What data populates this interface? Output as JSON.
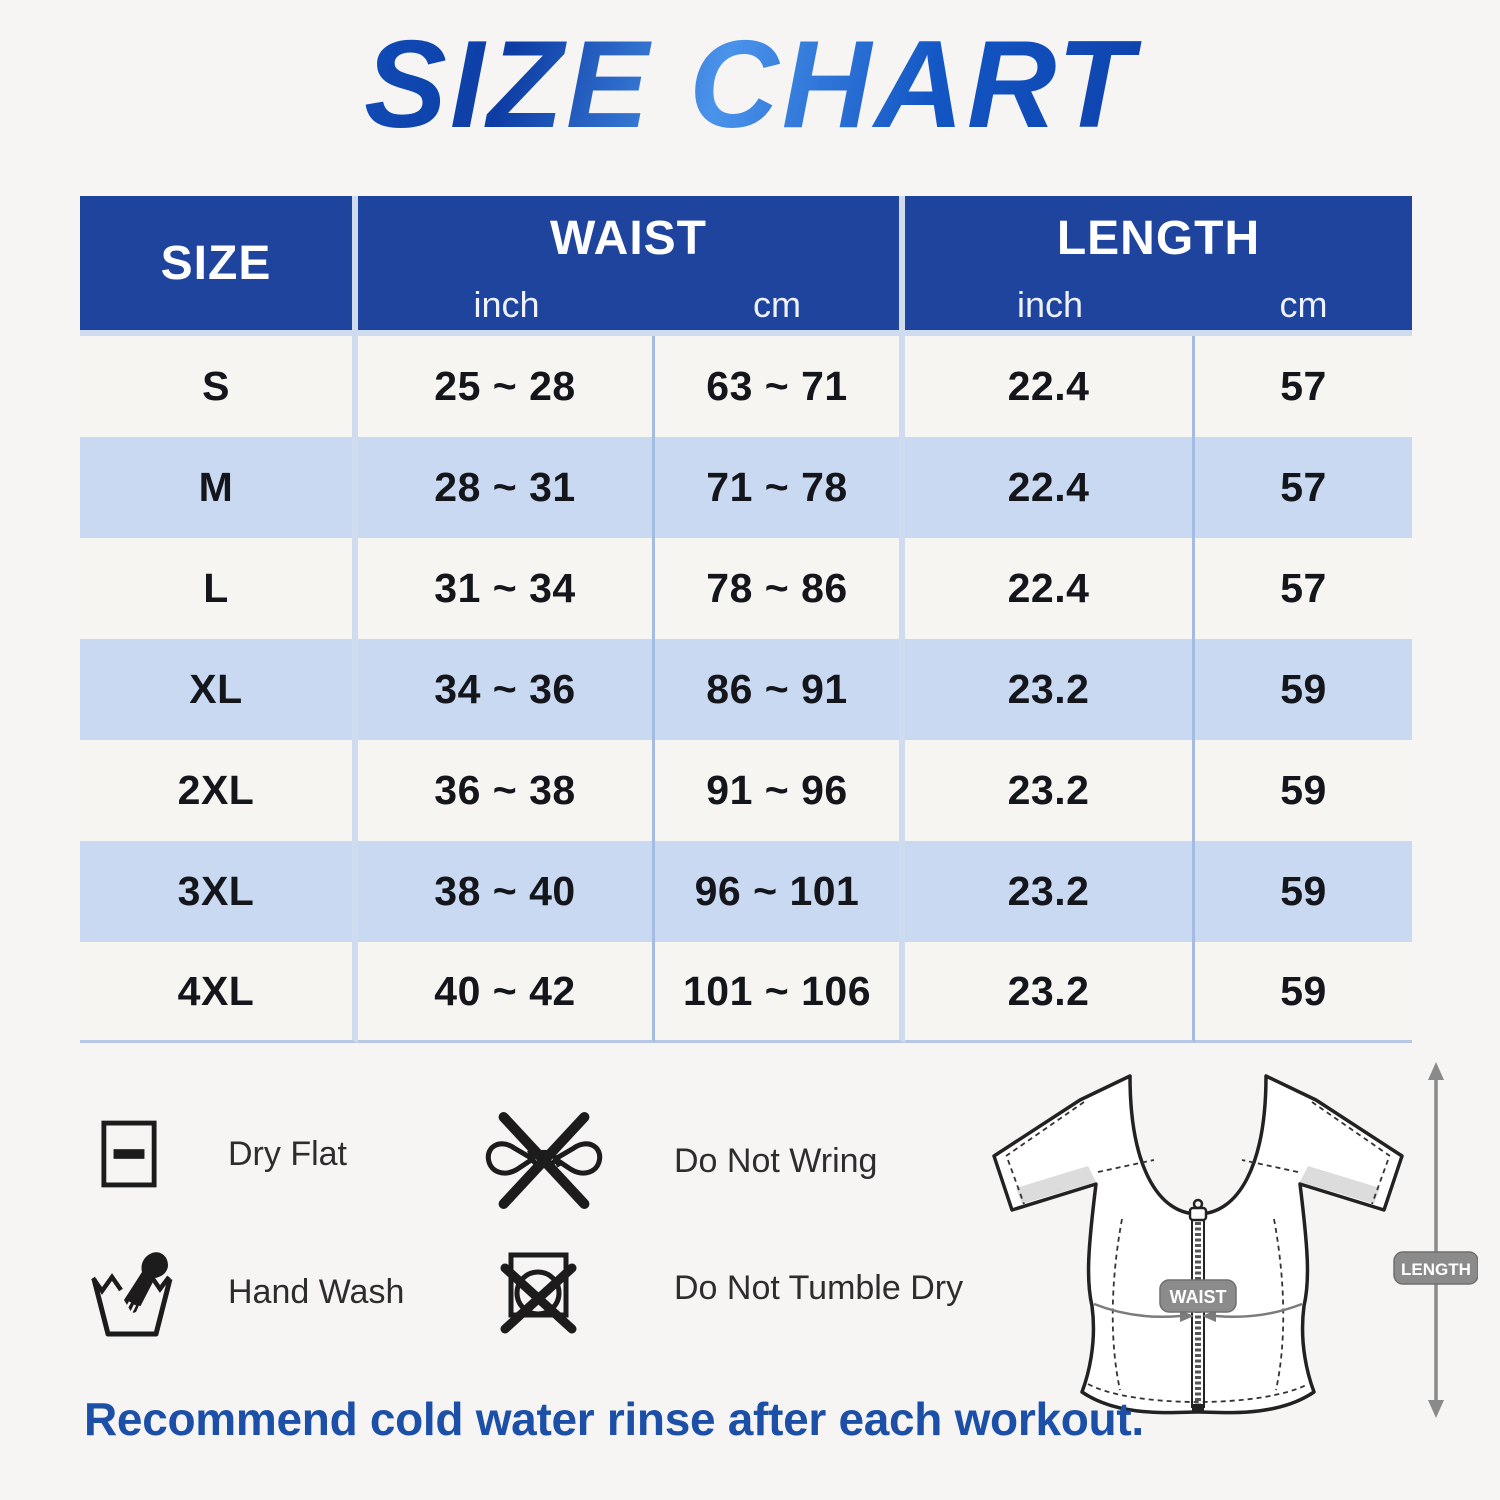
{
  "title": "SIZE CHART",
  "chart_data": {
    "type": "table",
    "title": "SIZE CHART",
    "headers": {
      "size": "SIZE",
      "waist": "WAIST",
      "length": "LENGTH",
      "unit_inch": "inch",
      "unit_cm": "cm"
    },
    "rows": [
      {
        "size": "S",
        "waist_inch": "25 ~ 28",
        "waist_cm": "63 ~ 71",
        "length_inch": "22.4",
        "length_cm": "57"
      },
      {
        "size": "M",
        "waist_inch": "28 ~ 31",
        "waist_cm": "71 ~ 78",
        "length_inch": "22.4",
        "length_cm": "57"
      },
      {
        "size": "L",
        "waist_inch": "31 ~ 34",
        "waist_cm": "78 ~ 86",
        "length_inch": "22.4",
        "length_cm": "57"
      },
      {
        "size": "XL",
        "waist_inch": "34 ~ 36",
        "waist_cm": "86 ~ 91",
        "length_inch": "23.2",
        "length_cm": "59"
      },
      {
        "size": "2XL",
        "waist_inch": "36 ~ 38",
        "waist_cm": "91 ~ 96",
        "length_inch": "23.2",
        "length_cm": "59"
      },
      {
        "size": "3XL",
        "waist_inch": "38 ~ 40",
        "waist_cm": "96 ~ 101",
        "length_inch": "23.2",
        "length_cm": "59"
      },
      {
        "size": "4XL",
        "waist_inch": "40 ~ 42",
        "waist_cm": "101 ~ 106",
        "length_inch": "23.2",
        "length_cm": "59"
      }
    ]
  },
  "care": {
    "items": [
      {
        "icon": "dry-flat-icon",
        "label": "Dry Flat"
      },
      {
        "icon": "do-not-wring-icon",
        "label": "Do Not Wring"
      },
      {
        "icon": "hand-wash-icon",
        "label": "Hand Wash"
      },
      {
        "icon": "do-not-tumble-dry-icon",
        "label": "Do Not Tumble Dry"
      }
    ]
  },
  "diagram": {
    "waist_label": "WAIST",
    "length_label": "LENGTH"
  },
  "footer_note": "Recommend cold water rinse after each workout.",
  "colors": {
    "header_blue": "#1e449e",
    "row_alt_blue": "#c8d9f1",
    "row_light": "#f6f5f2",
    "title_blue": "#1356c4",
    "footer_blue": "#1b4fa8",
    "badge_gray": "#8b8b8b",
    "background": "#f6f5f3"
  }
}
